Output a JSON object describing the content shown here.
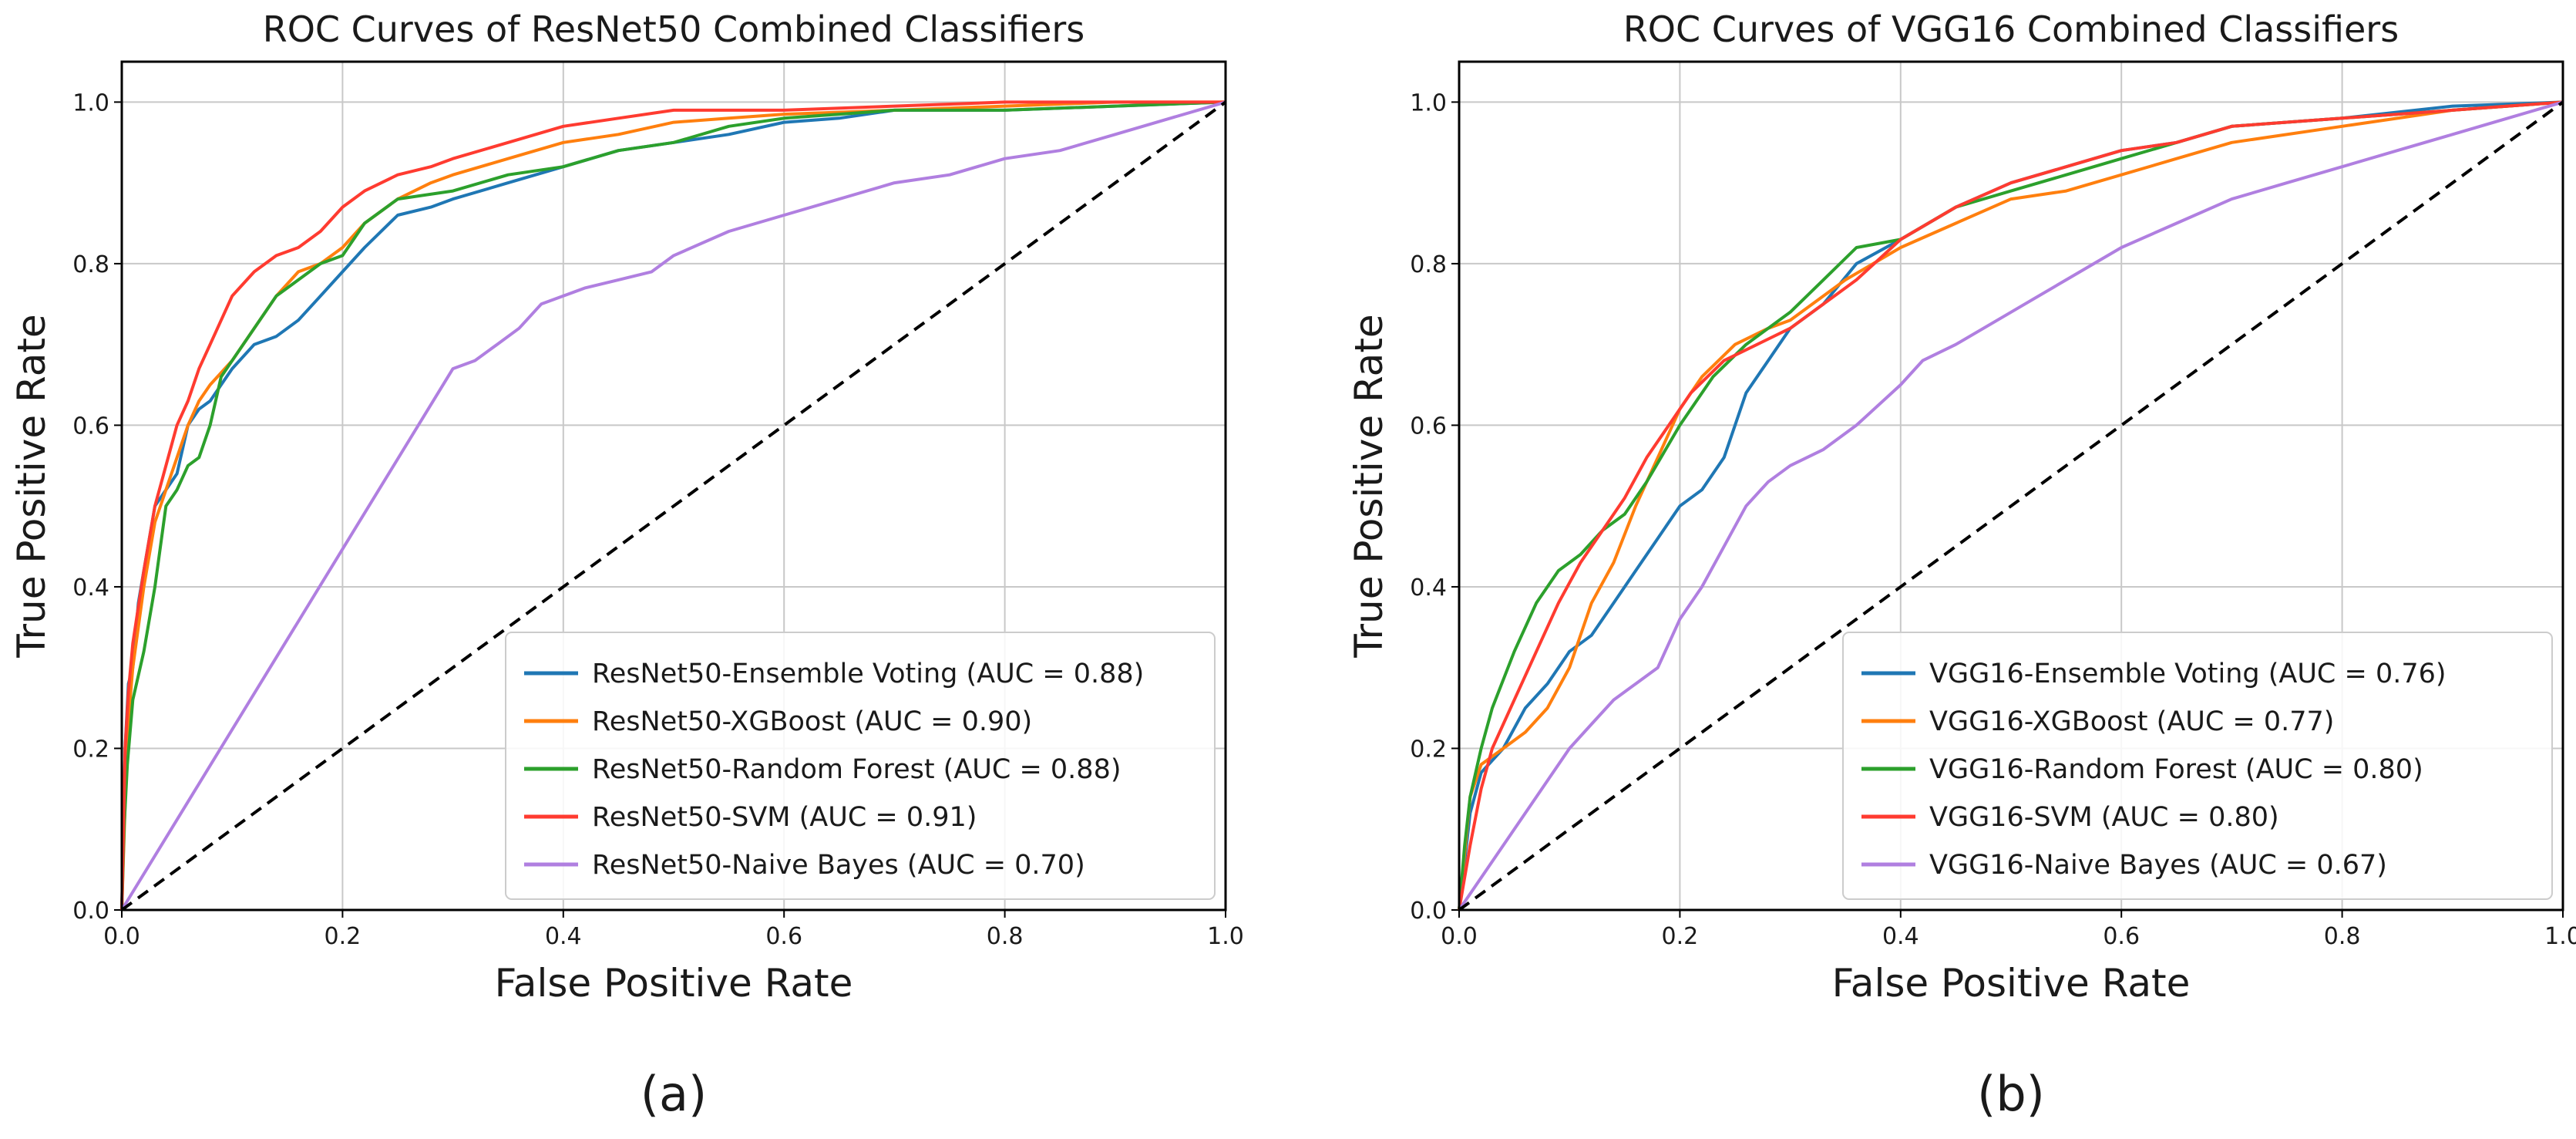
{
  "figure": {
    "panel_labels": [
      "(a)",
      "(b)"
    ]
  },
  "chart_data": [
    {
      "type": "line",
      "title": "ROC Curves of ResNet50 Combined Classifiers",
      "xlabel": "False Positive Rate",
      "ylabel": "True Positive Rate",
      "xlim": [
        0,
        1
      ],
      "ylim": [
        0,
        1.05
      ],
      "xticks": [
        "0.0",
        "0.2",
        "0.4",
        "0.6",
        "0.8",
        "1.0"
      ],
      "yticks": [
        "0.0",
        "0.2",
        "0.4",
        "0.6",
        "0.8",
        "1.0"
      ],
      "grid": true,
      "legend_position": "lower-right",
      "series": [
        {
          "name": "ResNet50-Ensemble Voting (AUC = 0.88)",
          "color": "#1f77b4",
          "x": [
            0,
            0.003,
            0.006,
            0.01,
            0.015,
            0.02,
            0.03,
            0.04,
            0.05,
            0.06,
            0.07,
            0.08,
            0.09,
            0.1,
            0.12,
            0.14,
            0.16,
            0.18,
            0.2,
            0.22,
            0.25,
            0.28,
            0.3,
            0.35,
            0.4,
            0.45,
            0.5,
            0.55,
            0.6,
            0.65,
            0.7,
            0.8,
            0.9,
            1.0
          ],
          "y": [
            0,
            0.2,
            0.28,
            0.3,
            0.38,
            0.42,
            0.5,
            0.52,
            0.54,
            0.6,
            0.62,
            0.63,
            0.65,
            0.67,
            0.7,
            0.71,
            0.73,
            0.76,
            0.79,
            0.82,
            0.86,
            0.87,
            0.88,
            0.9,
            0.92,
            0.94,
            0.95,
            0.96,
            0.975,
            0.98,
            0.99,
            0.99,
            0.995,
            1.0
          ]
        },
        {
          "name": "ResNet50-XGBoost (AUC = 0.90)",
          "color": "#ff7f0e",
          "x": [
            0,
            0.005,
            0.01,
            0.02,
            0.03,
            0.04,
            0.05,
            0.06,
            0.07,
            0.08,
            0.1,
            0.12,
            0.14,
            0.16,
            0.18,
            0.2,
            0.22,
            0.25,
            0.28,
            0.3,
            0.35,
            0.4,
            0.45,
            0.5,
            0.55,
            0.6,
            0.7,
            0.8,
            0.9,
            1.0
          ],
          "y": [
            0,
            0.22,
            0.3,
            0.4,
            0.48,
            0.52,
            0.56,
            0.6,
            0.63,
            0.65,
            0.68,
            0.72,
            0.76,
            0.79,
            0.8,
            0.82,
            0.85,
            0.88,
            0.9,
            0.91,
            0.93,
            0.95,
            0.96,
            0.975,
            0.98,
            0.985,
            0.99,
            0.995,
            1.0,
            1.0
          ]
        },
        {
          "name": "ResNet50-Random Forest (AUC = 0.88)",
          "color": "#2ca02c",
          "x": [
            0,
            0.002,
            0.005,
            0.01,
            0.02,
            0.03,
            0.04,
            0.05,
            0.06,
            0.07,
            0.08,
            0.09,
            0.1,
            0.12,
            0.14,
            0.16,
            0.18,
            0.2,
            0.22,
            0.25,
            0.3,
            0.35,
            0.4,
            0.45,
            0.5,
            0.55,
            0.6,
            0.65,
            0.7,
            0.8,
            0.9,
            1.0
          ],
          "y": [
            0,
            0.1,
            0.18,
            0.26,
            0.32,
            0.4,
            0.5,
            0.52,
            0.55,
            0.56,
            0.6,
            0.66,
            0.68,
            0.72,
            0.76,
            0.78,
            0.8,
            0.81,
            0.85,
            0.88,
            0.89,
            0.91,
            0.92,
            0.94,
            0.95,
            0.97,
            0.98,
            0.985,
            0.99,
            0.99,
            0.995,
            1.0
          ]
        },
        {
          "name": "ResNet50-SVM (AUC = 0.91)",
          "color": "#ff3b30",
          "x": [
            0,
            0.003,
            0.006,
            0.01,
            0.02,
            0.03,
            0.04,
            0.05,
            0.06,
            0.07,
            0.08,
            0.1,
            0.12,
            0.14,
            0.16,
            0.18,
            0.2,
            0.22,
            0.25,
            0.28,
            0.3,
            0.35,
            0.4,
            0.45,
            0.5,
            0.6,
            0.7,
            0.8,
            0.9,
            1.0
          ],
          "y": [
            0,
            0.2,
            0.27,
            0.33,
            0.42,
            0.5,
            0.55,
            0.6,
            0.63,
            0.67,
            0.7,
            0.76,
            0.79,
            0.81,
            0.82,
            0.84,
            0.87,
            0.89,
            0.91,
            0.92,
            0.93,
            0.95,
            0.97,
            0.98,
            0.99,
            0.99,
            0.995,
            1.0,
            1.0,
            1.0
          ]
        },
        {
          "name": "ResNet50-Naive Bayes (AUC = 0.70)",
          "color": "#b07fe0",
          "x": [
            0,
            0.3,
            0.32,
            0.34,
            0.36,
            0.38,
            0.4,
            0.42,
            0.45,
            0.48,
            0.5,
            0.55,
            0.6,
            0.65,
            0.7,
            0.75,
            0.8,
            0.85,
            0.9,
            0.95,
            1.0
          ],
          "y": [
            0,
            0.67,
            0.68,
            0.7,
            0.72,
            0.75,
            0.76,
            0.77,
            0.78,
            0.79,
            0.81,
            0.84,
            0.86,
            0.88,
            0.9,
            0.91,
            0.93,
            0.94,
            0.96,
            0.98,
            1.0
          ]
        },
        {
          "name": "",
          "color": "#000000",
          "dashed": true,
          "x": [
            0,
            1
          ],
          "y": [
            0,
            1
          ]
        }
      ]
    },
    {
      "type": "line",
      "title": "ROC Curves of VGG16 Combined Classifiers",
      "xlabel": "False Positive Rate",
      "ylabel": "True Positive Rate",
      "xlim": [
        0,
        1
      ],
      "ylim": [
        0,
        1.05
      ],
      "xticks": [
        "0.0",
        "0.2",
        "0.4",
        "0.6",
        "0.8",
        "1.0"
      ],
      "yticks": [
        "0.0",
        "0.2",
        "0.4",
        "0.6",
        "0.8",
        "1.0"
      ],
      "grid": true,
      "legend_position": "lower-right",
      "series": [
        {
          "name": "VGG16-Ensemble Voting (AUC = 0.76)",
          "color": "#1f77b4",
          "x": [
            0,
            0.01,
            0.02,
            0.04,
            0.06,
            0.08,
            0.1,
            0.12,
            0.14,
            0.16,
            0.18,
            0.2,
            0.22,
            0.24,
            0.26,
            0.28,
            0.3,
            0.33,
            0.36,
            0.4,
            0.45,
            0.5,
            0.55,
            0.6,
            0.65,
            0.7,
            0.8,
            0.9,
            1.0
          ],
          "y": [
            0,
            0.12,
            0.17,
            0.2,
            0.25,
            0.28,
            0.32,
            0.34,
            0.38,
            0.42,
            0.46,
            0.5,
            0.52,
            0.56,
            0.64,
            0.68,
            0.72,
            0.75,
            0.8,
            0.83,
            0.87,
            0.9,
            0.92,
            0.94,
            0.95,
            0.97,
            0.98,
            0.995,
            1.0
          ]
        },
        {
          "name": "VGG16-XGBoost (AUC = 0.77)",
          "color": "#ff7f0e",
          "x": [
            0,
            0.01,
            0.02,
            0.04,
            0.06,
            0.08,
            0.1,
            0.12,
            0.14,
            0.16,
            0.18,
            0.2,
            0.22,
            0.25,
            0.28,
            0.3,
            0.35,
            0.4,
            0.45,
            0.5,
            0.55,
            0.6,
            0.65,
            0.7,
            0.8,
            0.9,
            1.0
          ],
          "y": [
            0,
            0.14,
            0.18,
            0.2,
            0.22,
            0.25,
            0.3,
            0.38,
            0.43,
            0.5,
            0.56,
            0.62,
            0.66,
            0.7,
            0.72,
            0.73,
            0.78,
            0.82,
            0.85,
            0.88,
            0.89,
            0.91,
            0.93,
            0.95,
            0.97,
            0.99,
            1.0
          ]
        },
        {
          "name": "VGG16-Random Forest (AUC = 0.80)",
          "color": "#2ca02c",
          "x": [
            0,
            0.005,
            0.01,
            0.02,
            0.03,
            0.05,
            0.07,
            0.09,
            0.11,
            0.13,
            0.15,
            0.17,
            0.2,
            0.23,
            0.26,
            0.3,
            0.33,
            0.36,
            0.4,
            0.45,
            0.5,
            0.55,
            0.6,
            0.65,
            0.7,
            0.8,
            0.9,
            1.0
          ],
          "y": [
            0,
            0.08,
            0.14,
            0.2,
            0.25,
            0.32,
            0.38,
            0.42,
            0.44,
            0.47,
            0.49,
            0.53,
            0.6,
            0.66,
            0.7,
            0.74,
            0.78,
            0.82,
            0.83,
            0.87,
            0.89,
            0.91,
            0.93,
            0.95,
            0.97,
            0.98,
            0.99,
            1.0
          ]
        },
        {
          "name": "VGG16-SVM (AUC = 0.80)",
          "color": "#ff3b30",
          "x": [
            0,
            0.01,
            0.02,
            0.03,
            0.05,
            0.07,
            0.09,
            0.11,
            0.13,
            0.15,
            0.17,
            0.19,
            0.21,
            0.24,
            0.27,
            0.3,
            0.33,
            0.36,
            0.4,
            0.45,
            0.5,
            0.55,
            0.6,
            0.65,
            0.7,
            0.8,
            0.9,
            1.0
          ],
          "y": [
            0,
            0.08,
            0.15,
            0.2,
            0.26,
            0.32,
            0.38,
            0.43,
            0.47,
            0.51,
            0.56,
            0.6,
            0.64,
            0.68,
            0.7,
            0.72,
            0.75,
            0.78,
            0.83,
            0.87,
            0.9,
            0.92,
            0.94,
            0.95,
            0.97,
            0.98,
            0.99,
            1.0
          ]
        },
        {
          "name": "VGG16-Naive Bayes (AUC = 0.67)",
          "color": "#b07fe0",
          "x": [
            0,
            0.1,
            0.12,
            0.14,
            0.16,
            0.18,
            0.2,
            0.22,
            0.24,
            0.26,
            0.28,
            0.3,
            0.33,
            0.36,
            0.4,
            0.42,
            0.45,
            0.5,
            0.55,
            0.6,
            0.65,
            0.7,
            0.75,
            0.8,
            0.85,
            0.9,
            0.95,
            1.0
          ],
          "y": [
            0,
            0.2,
            0.23,
            0.26,
            0.28,
            0.3,
            0.36,
            0.4,
            0.45,
            0.5,
            0.53,
            0.55,
            0.57,
            0.6,
            0.65,
            0.68,
            0.7,
            0.74,
            0.78,
            0.82,
            0.85,
            0.88,
            0.9,
            0.92,
            0.94,
            0.96,
            0.98,
            1.0
          ]
        },
        {
          "name": "",
          "color": "#000000",
          "dashed": true,
          "x": [
            0,
            1
          ],
          "y": [
            0,
            1
          ]
        }
      ]
    }
  ]
}
